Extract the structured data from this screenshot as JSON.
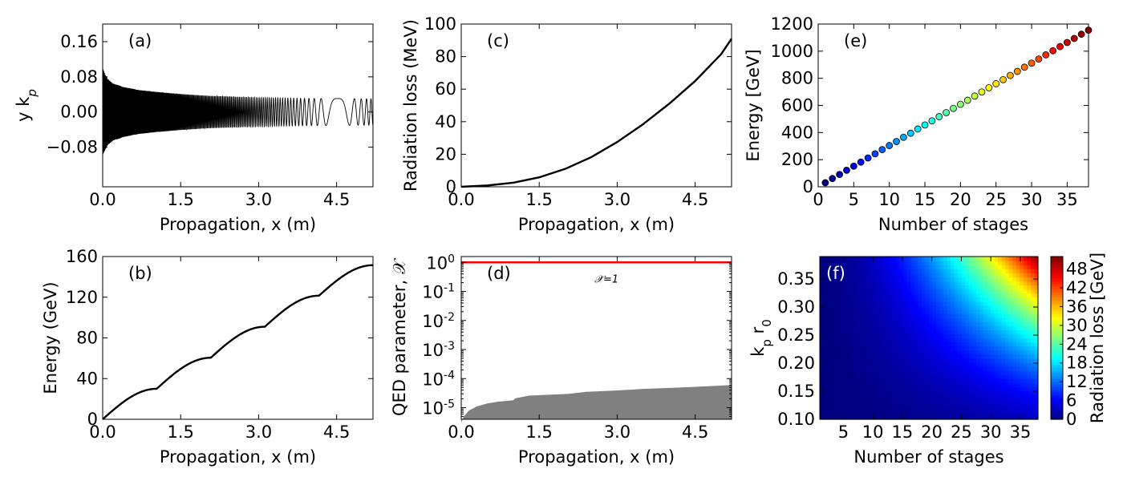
{
  "chart_data": [
    {
      "id": "a",
      "type": "line",
      "panel_label": "(a)",
      "xlabel": "Propagation, x (m)",
      "ylabel": "y k_p",
      "xlim": [
        0,
        5.2
      ],
      "ylim": [
        -0.17,
        0.2
      ],
      "xticks": [
        "0.0",
        "1.5",
        "3.0",
        "4.5"
      ],
      "yticks": [
        "−0.08",
        "0.00",
        "0.08",
        "0.16"
      ],
      "ytick_values": [
        -0.08,
        0,
        0.08,
        0.16
      ],
      "xtick_values": [
        0,
        1.5,
        3.0,
        4.5
      ],
      "envelope": {
        "x": [
          0,
          0.05,
          0.1,
          0.2,
          0.4,
          0.7,
          1.0,
          1.5,
          2.0,
          3.0,
          4.0,
          5.2
        ],
        "amplitude": [
          0.1,
          0.085,
          0.075,
          0.065,
          0.057,
          0.05,
          0.046,
          0.041,
          0.037,
          0.033,
          0.031,
          0.03
        ]
      },
      "series_color": "#000000"
    },
    {
      "id": "b",
      "type": "line",
      "panel_label": "(b)",
      "xlabel": "Propagation, x (m)",
      "ylabel": "Energy (GeV)",
      "xlim": [
        0,
        5.2
      ],
      "ylim": [
        0,
        160
      ],
      "xticks": [
        "0.0",
        "1.5",
        "3.0",
        "4.5"
      ],
      "xtick_values": [
        0,
        1.5,
        3.0,
        4.5
      ],
      "yticks": [
        "0",
        "40",
        "80",
        "120",
        "160"
      ],
      "ytick_values": [
        0,
        40,
        80,
        120,
        160
      ],
      "stages": {
        "length": 1.04,
        "gain": [
          30,
          30.5,
          30.5,
          30.5,
          30
        ],
        "count": 5
      },
      "series_color": "#000000"
    },
    {
      "id": "c",
      "type": "line",
      "panel_label": "(c)",
      "xlabel": "Propagation, x (m)",
      "ylabel": "Radiation loss (MeV)",
      "xlim": [
        0,
        5.2
      ],
      "ylim": [
        0,
        100
      ],
      "xticks": [
        "0.0",
        "1.5",
        "3.0",
        "4.5"
      ],
      "xtick_values": [
        0,
        1.5,
        3.0,
        4.5
      ],
      "yticks": [
        "0",
        "20",
        "40",
        "60",
        "80",
        "100"
      ],
      "ytick_values": [
        0,
        20,
        40,
        60,
        80,
        100
      ],
      "x": [
        0,
        0.5,
        1.0,
        1.5,
        2.0,
        2.5,
        3.0,
        3.5,
        4.0,
        4.5,
        5.0,
        5.2
      ],
      "y": [
        0,
        0.8,
        2.5,
        5.8,
        11.0,
        18.2,
        27.5,
        38.5,
        51.0,
        65.0,
        81.5,
        91.0
      ],
      "series_color": "#000000"
    },
    {
      "id": "d",
      "type": "area",
      "panel_label": "(d)",
      "xlabel": "Propagation, x (m)",
      "ylabel": "QED parameter, 𝒳",
      "xlim": [
        0,
        5.2
      ],
      "ylim_log10": [
        -5.4,
        0.2
      ],
      "log_y": true,
      "xticks": [
        "0.0",
        "1.5",
        "3.0",
        "4.5"
      ],
      "xtick_values": [
        0,
        1.5,
        3.0,
        4.5
      ],
      "yticks": [
        {
          "base": "10",
          "exp": "0",
          "value": 0
        },
        {
          "base": "10",
          "exp": "-1",
          "value": -1
        },
        {
          "base": "10",
          "exp": "-2",
          "value": -2
        },
        {
          "base": "10",
          "exp": "-3",
          "value": -3
        },
        {
          "base": "10",
          "exp": "-4",
          "value": -4
        },
        {
          "base": "10",
          "exp": "-5",
          "value": -5
        }
      ],
      "reference_line": {
        "value": 1,
        "label": "𝒳=1",
        "color": "#ff0000"
      },
      "area_upper": {
        "x": [
          0,
          0.05,
          0.15,
          0.3,
          0.5,
          0.7,
          1.0,
          1.04,
          1.3,
          2.08,
          2.4,
          3.12,
          3.5,
          4.16,
          4.6,
          5.2
        ],
        "y": [
          3e-06,
          5e-06,
          8e-06,
          1.1e-05,
          1.4e-05,
          1.6e-05,
          1.8e-05,
          2.1e-05,
          2.6e-05,
          3e-05,
          3.5e-05,
          4e-05,
          4.4e-05,
          4.9e-05,
          5.3e-05,
          6e-05
        ]
      },
      "area_color": "#808080"
    },
    {
      "id": "e",
      "type": "scatter",
      "panel_label": "(e)",
      "xlabel": "Number of stages",
      "ylabel": "Energy [GeV]",
      "xlim": [
        0,
        38
      ],
      "ylim": [
        0,
        1200
      ],
      "xticks": [
        "0",
        "5",
        "10",
        "15",
        "20",
        "25",
        "30",
        "35"
      ],
      "xtick_values": [
        0,
        5,
        10,
        15,
        20,
        25,
        30,
        35
      ],
      "yticks": [
        "0",
        "200",
        "400",
        "600",
        "800",
        "1000",
        "1200"
      ],
      "ytick_values": [
        0,
        200,
        400,
        600,
        800,
        1000,
        1200
      ],
      "x": [
        1,
        2,
        3,
        4,
        5,
        6,
        7,
        8,
        9,
        10,
        11,
        12,
        13,
        14,
        15,
        16,
        17,
        18,
        19,
        20,
        21,
        22,
        23,
        24,
        25,
        26,
        27,
        28,
        29,
        30,
        31,
        32,
        33,
        34,
        35,
        36,
        37,
        38
      ],
      "y": [
        30,
        61,
        91,
        122,
        152,
        182,
        213,
        243,
        274,
        304,
        334,
        365,
        395,
        426,
        456,
        486,
        517,
        547,
        578,
        608,
        638,
        669,
        699,
        730,
        760,
        790,
        821,
        851,
        882,
        912,
        942,
        973,
        1003,
        1034,
        1064,
        1094,
        1125,
        1155
      ]
    },
    {
      "id": "f",
      "type": "heatmap",
      "panel_label": "(f)",
      "xlabel": "Number of stages",
      "ylabel": "k_p r_0",
      "xlim": [
        1,
        38
      ],
      "ylim": [
        0.1,
        0.39
      ],
      "xticks": [
        "5",
        "10",
        "15",
        "20",
        "25",
        "30",
        "35"
      ],
      "xtick_values": [
        5,
        10,
        15,
        20,
        25,
        30,
        35
      ],
      "yticks": [
        "0.10",
        "0.15",
        "0.20",
        "0.25",
        "0.30",
        "0.35"
      ],
      "ytick_values": [
        0.1,
        0.15,
        0.2,
        0.25,
        0.3,
        0.35
      ],
      "colorbar_label": "Radiation loss [GeV]",
      "colorbar_ticks": [
        "0",
        "6",
        "12",
        "18",
        "24",
        "30",
        "36",
        "42",
        "48"
      ],
      "colorbar_values": [
        0,
        6,
        12,
        18,
        24,
        30,
        36,
        42,
        48
      ],
      "zlim": [
        0,
        52
      ],
      "model": "z = 52 * (N/38)^2 * (k_p r_0 / 0.39)^2",
      "colormap": "jet"
    }
  ]
}
